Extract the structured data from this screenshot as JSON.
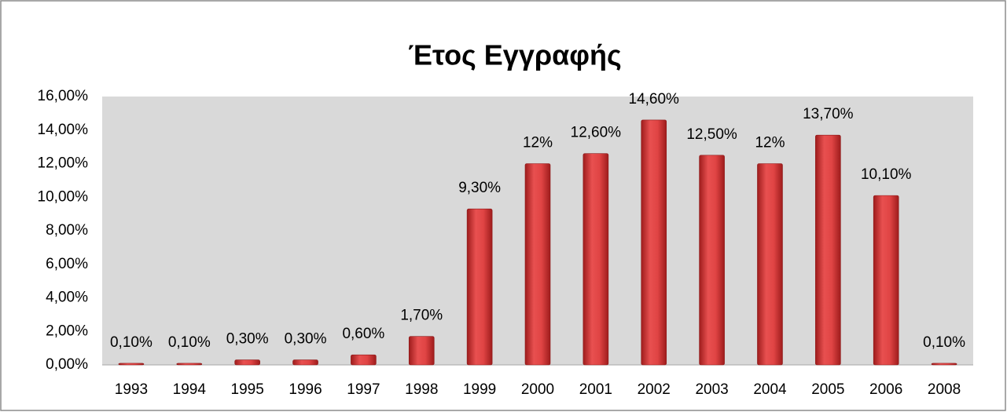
{
  "chart_data": {
    "type": "bar",
    "title": "Έτος Εγγραφής",
    "categories": [
      "1993",
      "1994",
      "1995",
      "1996",
      "1997",
      "1998",
      "1999",
      "2000",
      "2001",
      "2002",
      "2003",
      "2004",
      "2005",
      "2006",
      "2008"
    ],
    "values": [
      0.1,
      0.1,
      0.3,
      0.3,
      0.6,
      1.7,
      9.3,
      12,
      12.6,
      14.6,
      12.5,
      12,
      13.7,
      10.1,
      0.1
    ],
    "value_labels": [
      "0,10%",
      "0,10%",
      "0,30%",
      "0,30%",
      "0,60%",
      "1,70%",
      "9,30%",
      "12%",
      "12,60%",
      "14,60%",
      "12,50%",
      "12%",
      "13,70%",
      "10,10%",
      "0,10%"
    ],
    "color": "#d83a3a",
    "ylim": [
      0,
      16
    ],
    "yticks": [
      {
        "value": 0,
        "label": "0,00%"
      },
      {
        "value": 2,
        "label": "2,00%"
      },
      {
        "value": 4,
        "label": "4,00%"
      },
      {
        "value": 6,
        "label": "6,00%"
      },
      {
        "value": 8,
        "label": "8,00%"
      },
      {
        "value": 10,
        "label": "10,00%"
      },
      {
        "value": 12,
        "label": "12,00%"
      },
      {
        "value": 14,
        "label": "14,00%"
      },
      {
        "value": 16,
        "label": "16,00%"
      }
    ],
    "grid": false
  }
}
